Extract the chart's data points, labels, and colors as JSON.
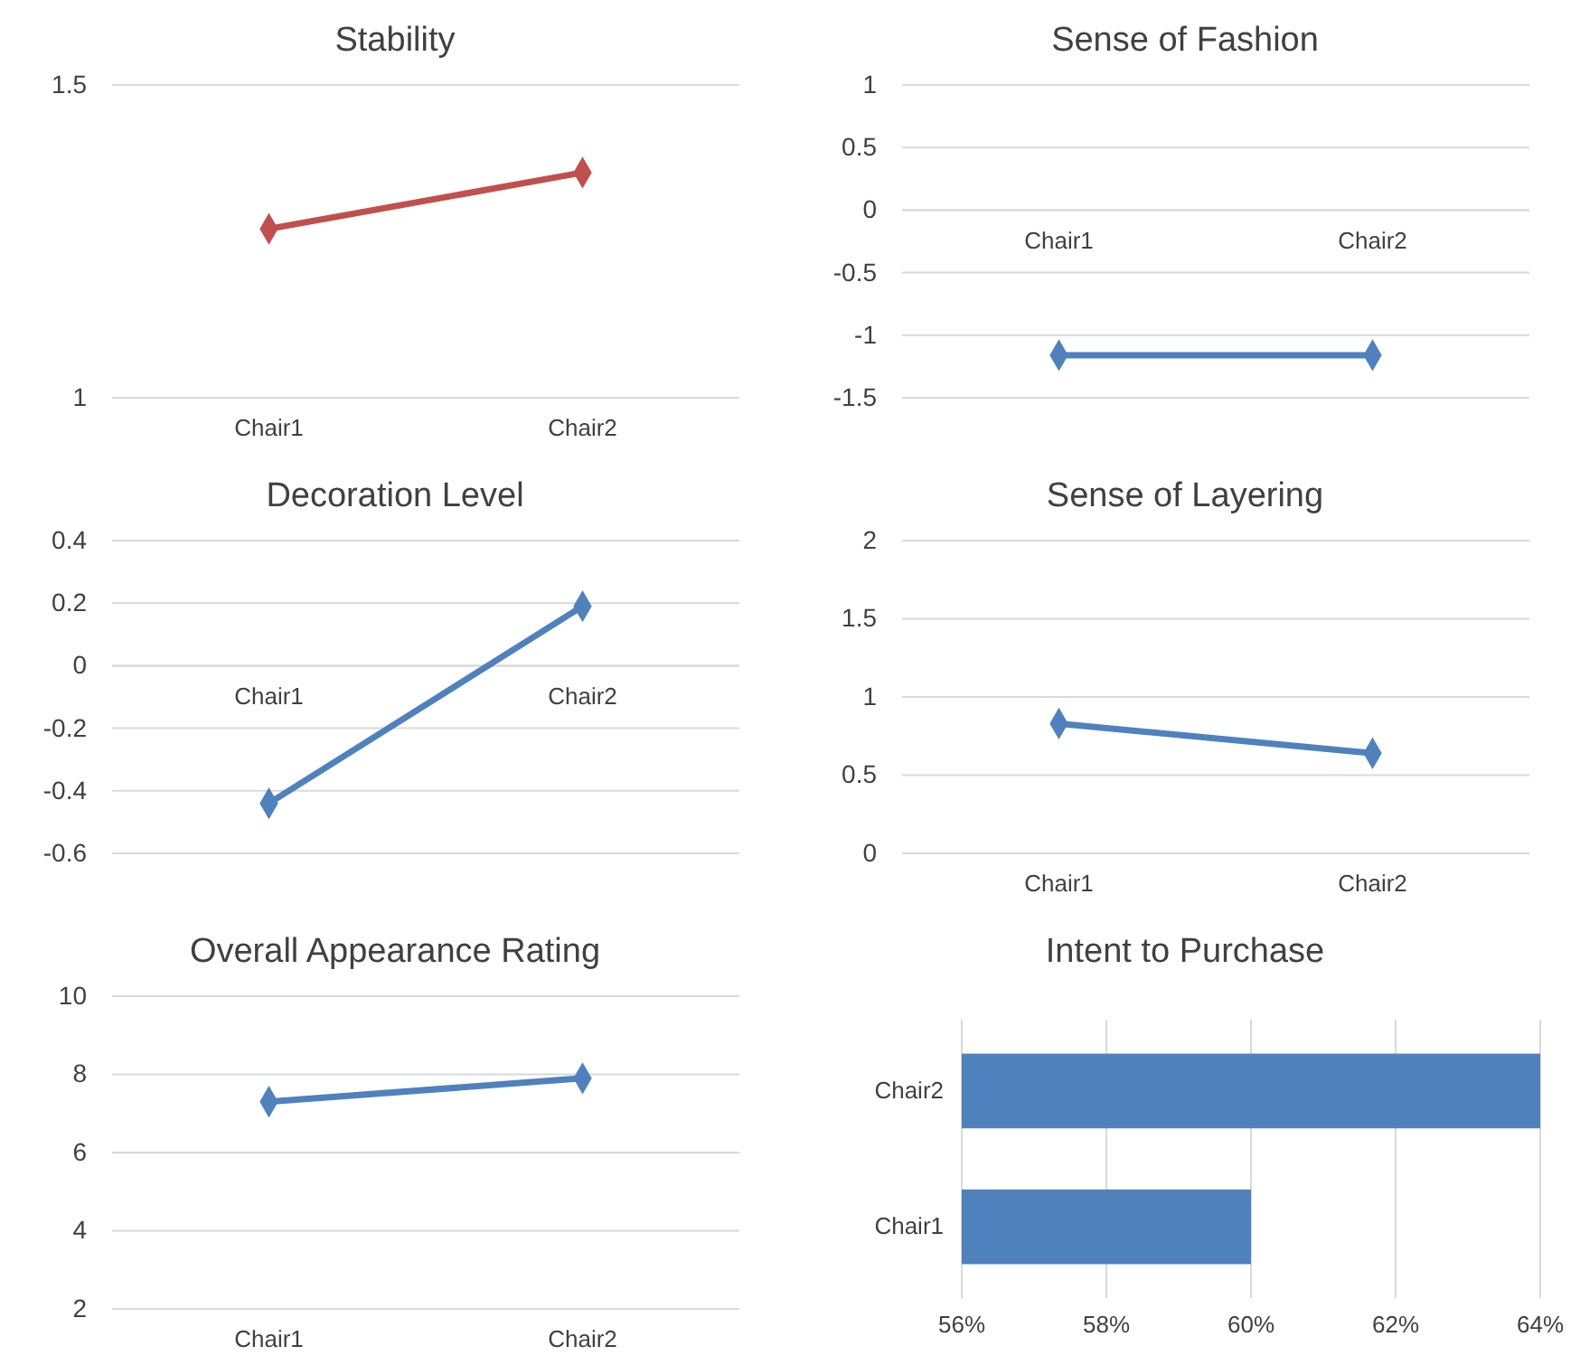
{
  "chart_data": [
    {
      "type": "line",
      "title": "Stability",
      "categories": [
        "Chair1",
        "Chair2"
      ],
      "series": [
        {
          "color": "#c0504d",
          "values": [
            1.27,
            1.36
          ]
        }
      ],
      "ylim": [
        1,
        1.5
      ],
      "yticks": [
        1,
        1.5
      ],
      "grid": "y",
      "marker": "diamond",
      "line_style": "solid"
    },
    {
      "type": "line",
      "title": "Sense of Fashion",
      "categories": [
        "Chair1",
        "Chair2"
      ],
      "series": [
        {
          "color": "#4f81bd",
          "values": [
            -1.16,
            -1.16
          ]
        }
      ],
      "ylim": [
        -1.5,
        1
      ],
      "yticks": [
        -1.5,
        -1,
        -0.5,
        0,
        0.5,
        1
      ],
      "grid": "y",
      "marker": "diamond",
      "line_style": "solid"
    },
    {
      "type": "line",
      "title": "Decoration Level",
      "categories": [
        "Chair1",
        "Chair2"
      ],
      "series": [
        {
          "color": "#4f81bd",
          "values": [
            -0.44,
            0.19
          ]
        }
      ],
      "ylim": [
        -0.6,
        0.4
      ],
      "yticks": [
        -0.6,
        -0.4,
        -0.2,
        0,
        0.2,
        0.4
      ],
      "grid": "y",
      "marker": "diamond",
      "line_style": "solid"
    },
    {
      "type": "line",
      "title": "Sense of Layering",
      "categories": [
        "Chair1",
        "Chair2"
      ],
      "series": [
        {
          "color": "#4f81bd",
          "values": [
            0.83,
            0.64
          ]
        }
      ],
      "ylim": [
        0,
        2
      ],
      "yticks": [
        0,
        0.5,
        1,
        1.5,
        2
      ],
      "grid": "y",
      "marker": "diamond",
      "line_style": "solid"
    },
    {
      "type": "line",
      "title": "Overall Appearance Rating",
      "categories": [
        "Chair1",
        "Chair2"
      ],
      "series": [
        {
          "color": "#4f81bd",
          "values": [
            7.3,
            7.9
          ]
        }
      ],
      "ylim": [
        2,
        10
      ],
      "yticks": [
        2,
        4,
        6,
        8,
        10
      ],
      "grid": "y",
      "marker": "diamond",
      "line_style": "solid"
    },
    {
      "type": "bar",
      "orientation": "horizontal",
      "title": "Intent to Purchase",
      "categories": [
        "Chair2",
        "Chair1"
      ],
      "series": [
        {
          "color": "#4f81bd",
          "values": [
            64,
            60
          ]
        }
      ],
      "xlim": [
        56,
        64
      ],
      "xticks": [
        {
          "value": 56,
          "label": "56%"
        },
        {
          "value": 58,
          "label": "58%"
        },
        {
          "value": 60,
          "label": "60%"
        },
        {
          "value": 62,
          "label": "62%"
        },
        {
          "value": 64,
          "label": "64%"
        }
      ],
      "grid": "x"
    }
  ]
}
